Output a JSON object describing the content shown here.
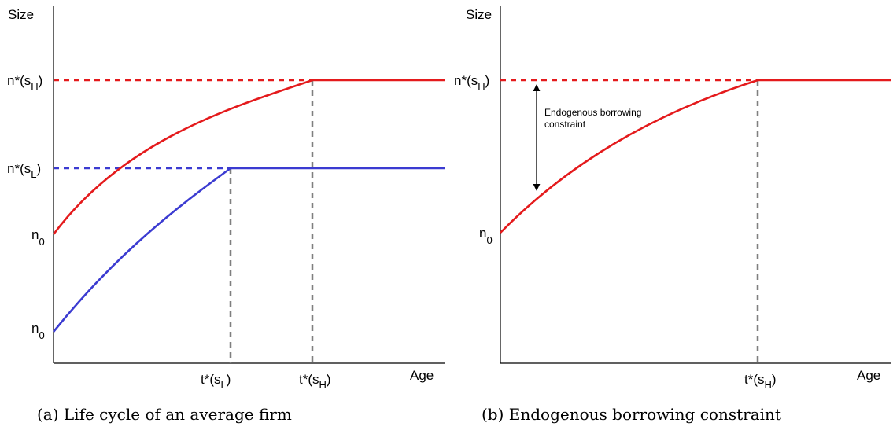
{
  "colors": {
    "high": "#e41a1c",
    "low": "#3b3bd1",
    "guide": "#7f7f7f",
    "axis": "#000000"
  },
  "panel_a": {
    "y_axis_label": "Size",
    "x_axis_label": "Age",
    "n_star_high": {
      "main": "n*(s",
      "sub": "H",
      "close": ")"
    },
    "n_star_low": {
      "main": "n*(s",
      "sub": "L",
      "close": ")"
    },
    "n0_high": {
      "main": "n",
      "sub": "0"
    },
    "n0_low": {
      "main": "n",
      "sub": "0"
    },
    "t_star_low": {
      "main": "t*(s",
      "sub": "L",
      "close": ")"
    },
    "t_star_high": {
      "main": "t*(s",
      "sub": "H",
      "close": ")"
    },
    "caption": "(a) Life cycle of an average firm"
  },
  "panel_b": {
    "y_axis_label": "Size",
    "x_axis_label": "Age",
    "n_star_high": {
      "main": "n*(s",
      "sub": "H",
      "close": ")"
    },
    "n0_high": {
      "main": "n",
      "sub": "0"
    },
    "t_star_high": {
      "main": "t*(s",
      "sub": "H",
      "close": ")"
    },
    "annotation_line1": "Endogenous borrowing",
    "annotation_line2": "constraint",
    "caption": "(b) Endogenous borrowing constraint"
  }
}
